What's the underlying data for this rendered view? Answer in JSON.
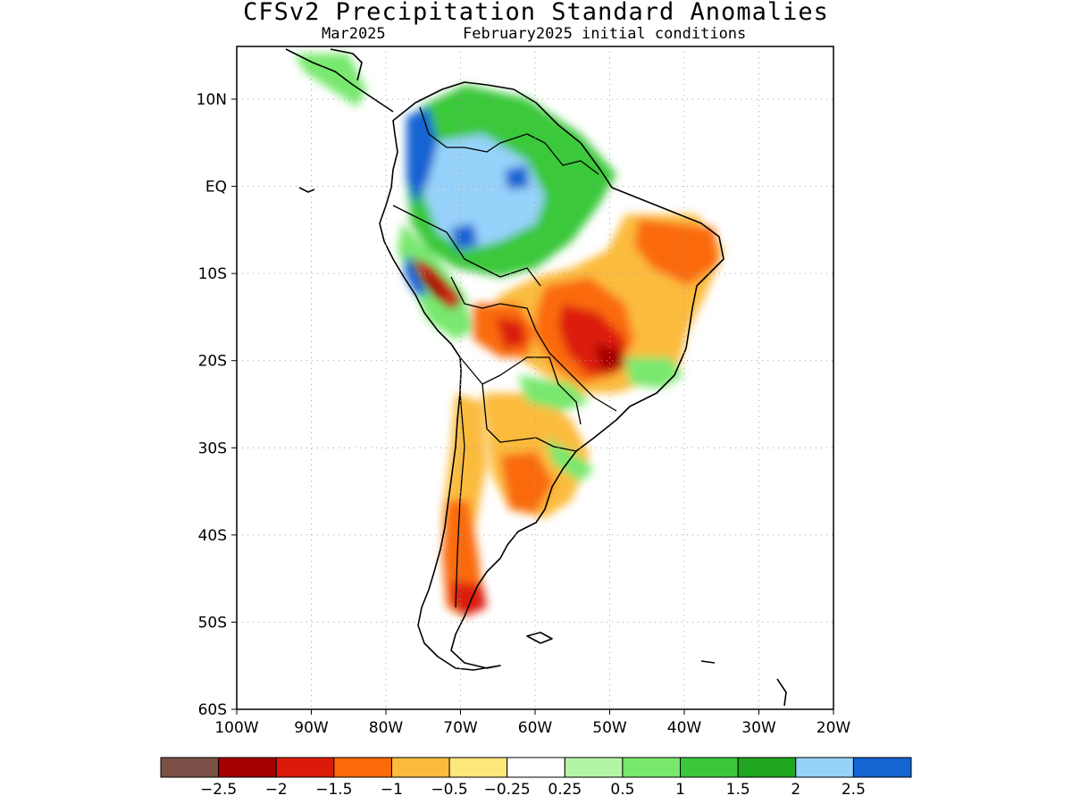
{
  "title": "CFSv2 Precipitation Standard Anomalies",
  "subtitle_left": "Mar2025",
  "subtitle_right": "February2025 initial conditions",
  "lat_labels": [
    "10N",
    "EQ",
    "10S",
    "20S",
    "30S",
    "40S",
    "50S",
    "60S"
  ],
  "lat_values": [
    10,
    0,
    -10,
    -20,
    -30,
    -40,
    -50,
    -60
  ],
  "lon_labels": [
    "100W",
    "90W",
    "80W",
    "70W",
    "60W",
    "50W",
    "40W",
    "30W",
    "20W"
  ],
  "lon_values": [
    -100,
    -90,
    -80,
    -70,
    -60,
    -50,
    -40,
    -30,
    -20
  ],
  "colorbar": {
    "colors": [
      "#7a5046",
      "#a50000",
      "#dc1a0a",
      "#fa6a0a",
      "#fbbb3c",
      "#fde67a",
      "#ffffff",
      "#b4f5a5",
      "#78e86e",
      "#3ac83a",
      "#1fa51f",
      "#96d2fa",
      "#1464d2"
    ],
    "labels": [
      "-2.5",
      "-2",
      "-1.5",
      "-1",
      "-0.5",
      "-0.25",
      "0.25",
      "0.5",
      "1",
      "1.5",
      "2",
      "2.5"
    ]
  }
}
